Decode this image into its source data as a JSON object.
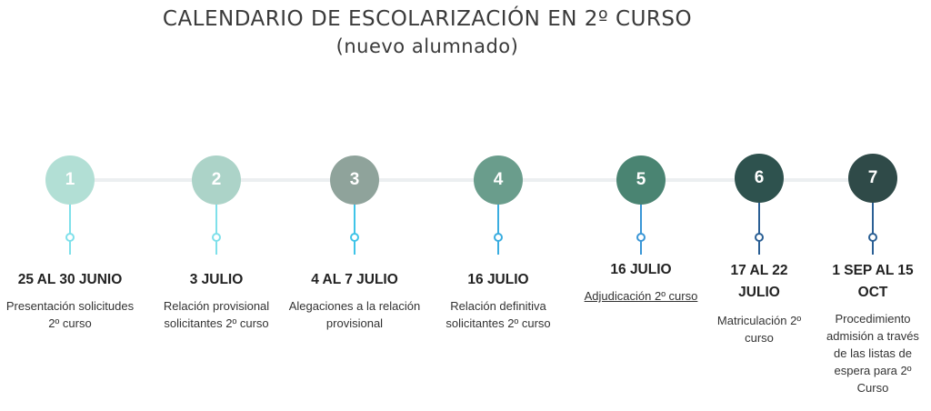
{
  "title": "CALENDARIO DE ESCOLARIZACIÓN EN 2º CURSO",
  "subtitle": "(nuevo alumnado)",
  "steps": [
    {
      "number": "1",
      "date": "25  AL 30 JUNIO",
      "description": "Presentación solicitudes 2º curso",
      "circle_color": "#b2dfd5",
      "stem_color": "#7fe0ea"
    },
    {
      "number": "2",
      "date": "3 JULIO",
      "description": "Relación provisional solicitantes 2º curso",
      "circle_color": "#acd3c8",
      "stem_color": "#7fe0ea"
    },
    {
      "number": "3",
      "date": "4 AL 7 JULIO",
      "description": "Alegaciones a la relación provisional",
      "circle_color": "#8fa39b",
      "stem_color": "#3fc4e8"
    },
    {
      "number": "4",
      "date": "16 JULIO",
      "description": "Relación definitiva solicitantes 2º curso",
      "circle_color": "#6a9d8c",
      "stem_color": "#3aade0"
    },
    {
      "number": "5",
      "date": "16 JULIO",
      "description": "Adjudicación 2º curso",
      "circle_color": "#4a8472",
      "stem_color": "#3a96d6"
    },
    {
      "number": "6",
      "date": "17 AL 22 JULIO",
      "description": "Matriculación 2º curso",
      "circle_color": "#2e524e",
      "stem_color": "#2a5f94"
    },
    {
      "number": "7",
      "date": "1 SEP AL 15 OCT",
      "description": "Procedimiento admisión a través de las listas de espera para 2º Curso",
      "circle_color": "#2f4a48",
      "stem_color": "#2a5f94"
    }
  ]
}
